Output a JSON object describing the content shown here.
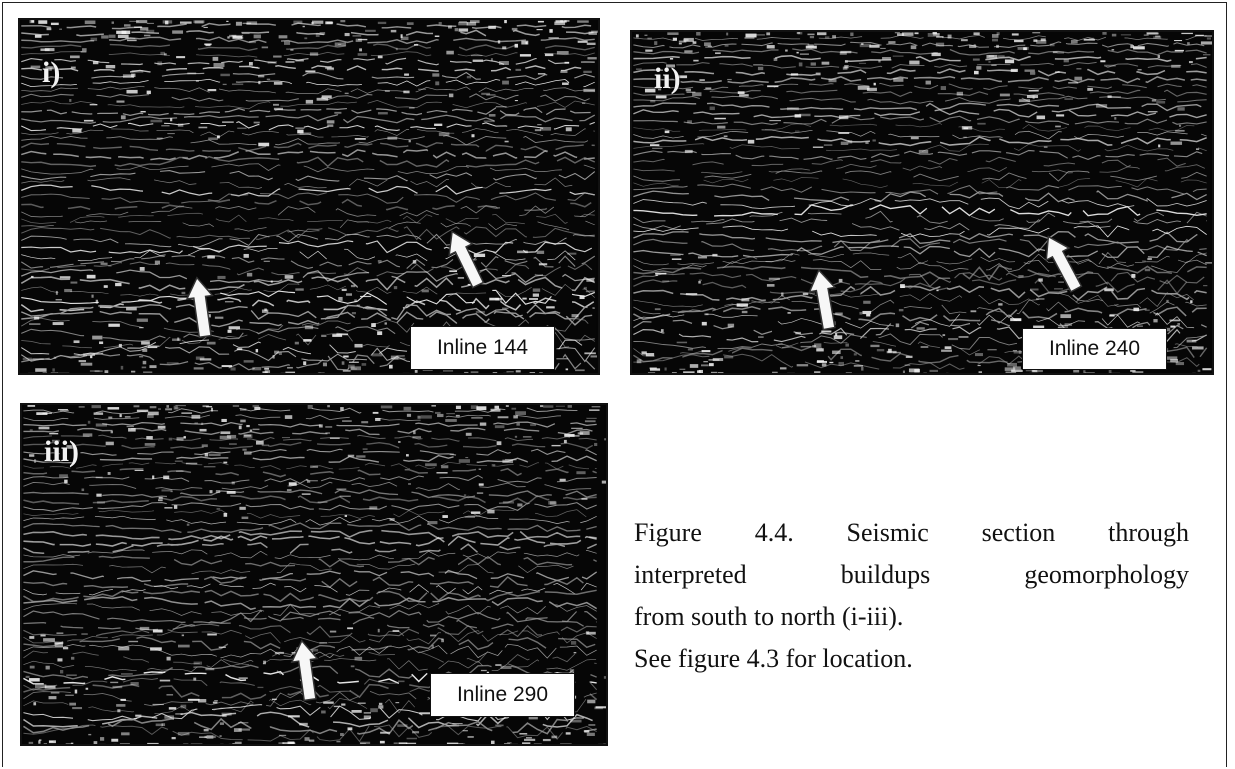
{
  "panels": [
    {
      "label": "i)",
      "inline": "Inline 144"
    },
    {
      "label": "ii)",
      "inline": "Inline 240"
    },
    {
      "label": "iii)",
      "inline": "Inline 290"
    }
  ],
  "caption": {
    "line1": "Figure 4.4. Seismic section through",
    "line2": "interpreted buildups geomorphology",
    "line3": "from south to north (i-iii).",
    "line4": "See figure 4.3 for location."
  }
}
